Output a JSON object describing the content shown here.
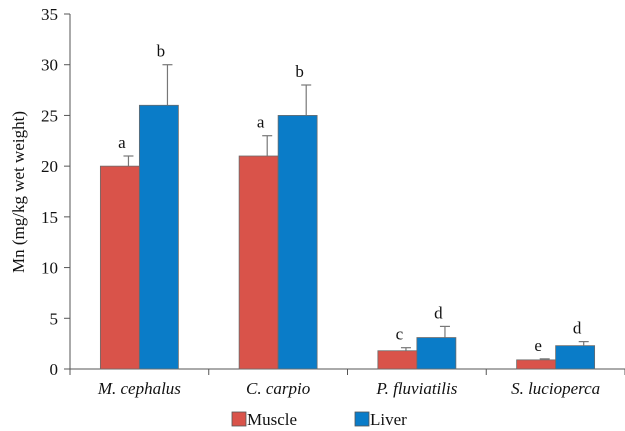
{
  "chart_data": {
    "type": "bar",
    "ylabel": "Mn (mg/kg wet weight)",
    "ylim": [
      0,
      35
    ],
    "yticks": [
      0,
      5,
      10,
      15,
      20,
      25,
      30,
      35
    ],
    "categories": [
      "M. cephalus",
      "C. carpio",
      "P. fluviatilis",
      "S. lucioperca"
    ],
    "series": [
      {
        "name": "Muscle",
        "color": "#D9534A",
        "values": [
          20,
          21,
          1.8,
          0.9
        ],
        "errors": [
          1.0,
          2.0,
          0.3,
          0.1
        ],
        "labels": [
          "a",
          "a",
          "c",
          "e"
        ]
      },
      {
        "name": "Liver",
        "color": "#0A7CC8",
        "values": [
          26,
          25,
          3.1,
          2.3
        ],
        "errors": [
          4.0,
          3.0,
          1.1,
          0.4
        ],
        "labels": [
          "b",
          "b",
          "d",
          "d"
        ]
      }
    ],
    "legend": {
      "position": "bottom"
    },
    "grid": false
  }
}
